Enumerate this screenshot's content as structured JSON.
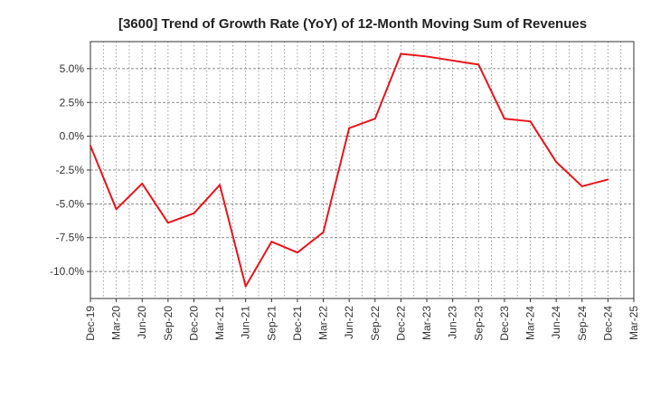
{
  "chart_data": {
    "type": "line",
    "title": "[3600]  Trend of Growth Rate (YoY) of 12-Month Moving Sum of Revenues",
    "xlabel": "",
    "ylabel": "",
    "y_unit": "%",
    "ylim": [
      -12.0,
      7.0
    ],
    "yticks": [
      5.0,
      2.5,
      0.0,
      -2.5,
      -5.0,
      -7.5,
      -10.0
    ],
    "ytick_labels": [
      "5.0%",
      "2.5%",
      "0.0%",
      "-2.5%",
      "-5.0%",
      "-7.5%",
      "-10.0%"
    ],
    "categories": [
      "Dec-19",
      "Mar-20",
      "Jun-20",
      "Sep-20",
      "Dec-20",
      "Mar-21",
      "Jun-21",
      "Sep-21",
      "Dec-21",
      "Mar-22",
      "Jun-22",
      "Sep-22",
      "Dec-22",
      "Mar-23",
      "Jun-23",
      "Sep-23",
      "Dec-23",
      "Mar-24",
      "Jun-24",
      "Sep-24",
      "Dec-24",
      "Mar-25"
    ],
    "grid": true,
    "series": [
      {
        "color": "#e8141b",
        "values": [
          -0.7,
          -5.4,
          -3.5,
          -6.4,
          -5.7,
          -3.6,
          -11.1,
          -7.8,
          -8.6,
          -7.1,
          0.6,
          1.3,
          6.1,
          5.9,
          5.6,
          5.3,
          1.3,
          1.1,
          -1.9,
          -3.7,
          -3.2,
          null
        ]
      }
    ]
  }
}
